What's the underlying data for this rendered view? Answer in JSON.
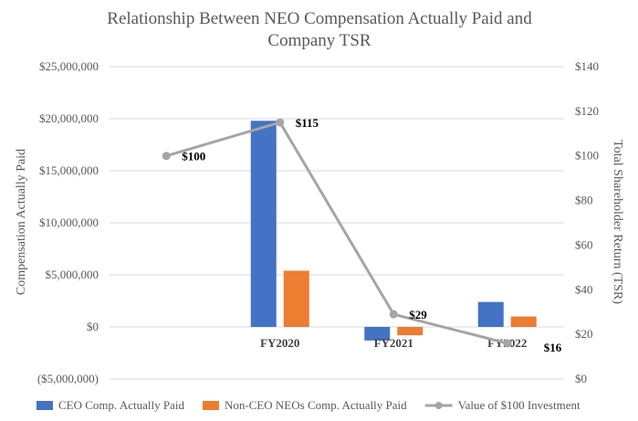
{
  "chart_data": {
    "type": "bar+line",
    "title_lines": [
      "Relationship Between NEO Compensation Actually Paid and",
      "Company TSR"
    ],
    "categories": [
      "",
      "FY2020",
      "FY2021",
      "FY2022"
    ],
    "series": [
      {
        "name": "CEO Comp. Actually Paid",
        "type": "bar",
        "axis": "left",
        "color": "#4472c4",
        "values": [
          null,
          19800000,
          -1300000,
          2400000
        ]
      },
      {
        "name": "Non-CEO NEOs Comp. Actually Paid",
        "type": "bar",
        "axis": "left",
        "color": "#ed7d31",
        "values": [
          null,
          5400000,
          -800000,
          1000000
        ]
      },
      {
        "name": "Value of $100 Investment",
        "type": "line",
        "axis": "right",
        "color": "#a5a5a5",
        "values": [
          100,
          115,
          29,
          16
        ],
        "labels": [
          "$100",
          "$115",
          "$29",
          "$16"
        ]
      }
    ],
    "y_left": {
      "label": "Compensation Actually Paid",
      "min": -5000000,
      "max": 25000000,
      "ticks": [
        -5000000,
        0,
        5000000,
        10000000,
        15000000,
        20000000,
        25000000
      ],
      "tick_labels": [
        "($5,000,000)",
        "$0",
        "$5,000,000",
        "$10,000,000",
        "$15,000,000",
        "$20,000,000",
        "$25,000,000"
      ]
    },
    "y_right": {
      "label": "Total Shareholder Return (TSR)",
      "min": 0,
      "max": 140,
      "ticks": [
        0,
        20,
        40,
        60,
        80,
        100,
        120,
        140
      ],
      "tick_labels": [
        "$0",
        "$20",
        "$40",
        "$60",
        "$80",
        "$100",
        "$120",
        "$140"
      ]
    },
    "legend": {
      "position": "bottom"
    },
    "grid": true
  }
}
